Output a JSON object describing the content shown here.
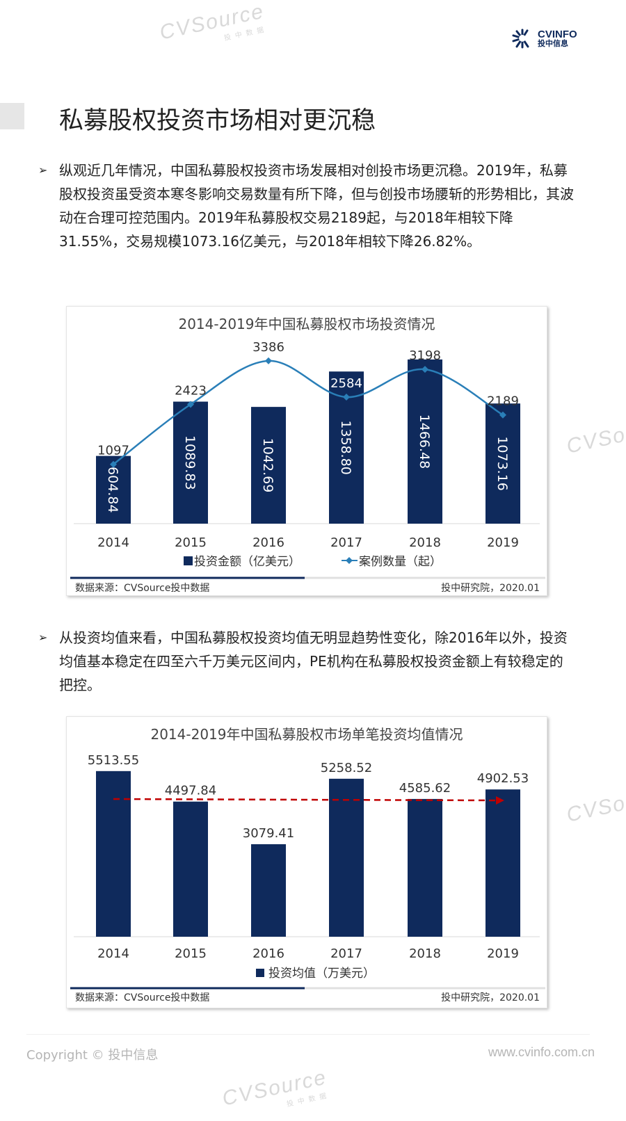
{
  "watermark": {
    "brand": "CVSource",
    "sub": "投中数据"
  },
  "logo": {
    "brand": "CVINFO",
    "sub": "投中信息"
  },
  "title": "私募股权投资市场相对更沉稳",
  "paragraphs": [
    "纵观近几年情况，中国私募股权投资市场发展相对创投市场更沉稳。2019年，私募股权投资虽受资本寒冬影响交易数量有所下降，但与创投市场腰斩的形势相比，其波动在合理可控范围内。2019年私募股权交易2189起，与2018年相较下降31.55%，交易规模1073.16亿美元，与2018年相较下降26.82%。",
    "从投资均值来看，中国私募股权投资均值无明显趋势性变化，除2016年以外，投资均值基本稳定在四至六千万美元区间内，PE机构在私募股权投资金额上有较稳定的把控。"
  ],
  "bullet": "➢",
  "chart_data": [
    {
      "type": "bar+line",
      "title": "2014-2019年中国私募股权市场投资情况",
      "categories": [
        "2014",
        "2015",
        "2016",
        "2017",
        "2018",
        "2019"
      ],
      "series": [
        {
          "name": "投资金额（亿美元）",
          "type": "bar",
          "color": "#0f2a5c",
          "values": [
            604.84,
            1089.83,
            1042.69,
            1358.8,
            1466.48,
            1073.16
          ],
          "labels": [
            "604.84",
            "1089.83",
            "1042.69",
            "1358.80",
            "1466.48",
            "1073.16"
          ]
        },
        {
          "name": "案例数量（起）",
          "type": "line",
          "color": "#2a7fb8",
          "values": [
            1097,
            2423,
            3386,
            2584,
            3198,
            2189
          ],
          "labels": [
            "1097",
            "2423",
            "3386",
            "2584",
            "3198",
            "2189"
          ]
        }
      ],
      "source": "数据来源：CVSource投中数据",
      "credit": "投中研究院，2020.01"
    },
    {
      "type": "bar",
      "title": "2014-2019年中国私募股权市场单笔投资均值情况",
      "categories": [
        "2014",
        "2015",
        "2016",
        "2017",
        "2018",
        "2019"
      ],
      "series": [
        {
          "name": "投资均值（万美元）",
          "type": "bar",
          "color": "#0f2a5c",
          "values": [
            5513.55,
            4497.84,
            3079.41,
            5258.52,
            4585.62,
            4902.53
          ],
          "labels": [
            "5513.55",
            "4497.84",
            "3079.41",
            "5258.52",
            "4585.62",
            "4902.53"
          ]
        }
      ],
      "trend_color": "#c00000",
      "source": "数据来源：CVSource投中数据",
      "credit": "投中研究院，2020.01"
    }
  ],
  "footer": {
    "copyright": "Copyright © 投中信息",
    "url": "www.cvinfo.com.cn"
  }
}
